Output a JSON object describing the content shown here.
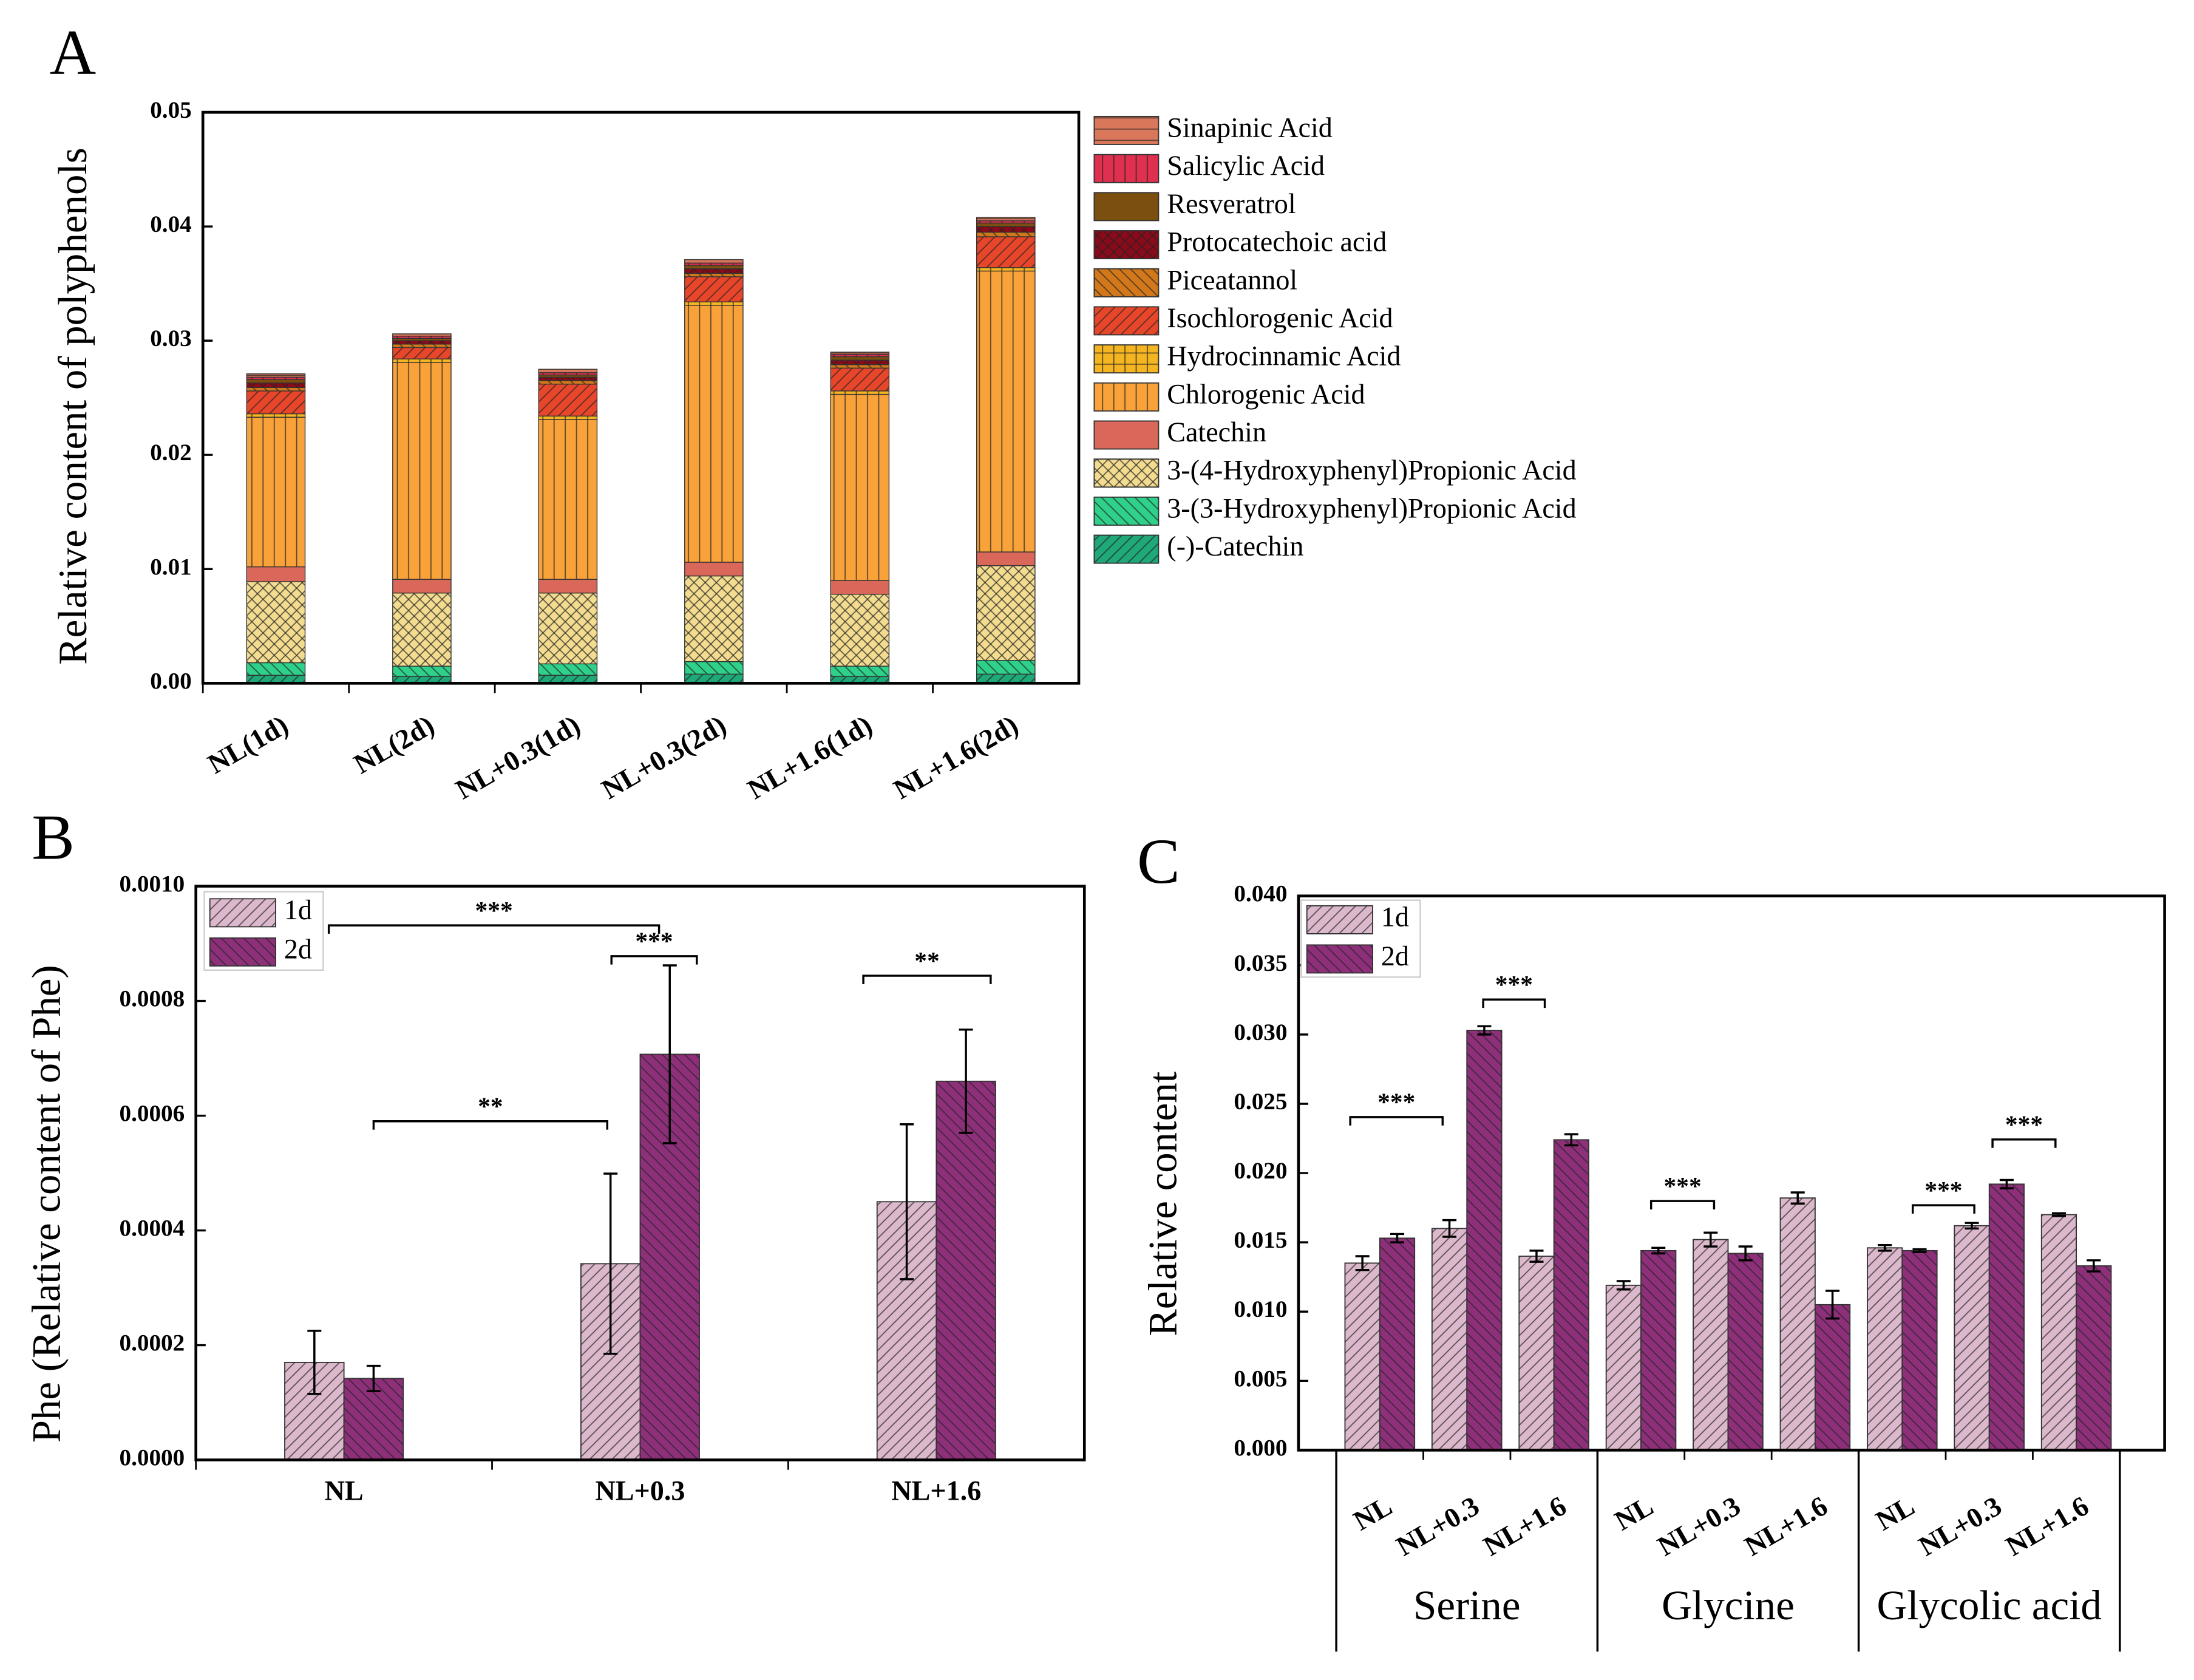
{
  "chart_data": [
    {
      "type": "bar",
      "stacked": true,
      "panel_label": "A",
      "ylabel": "Relative content of polyphenols",
      "categories": [
        "NL(1d)",
        "NL(2d)",
        "NL+0.3(1d)",
        "NL+0.3(2d)",
        "NL+1.6(1d)",
        "NL+1.6(2d)"
      ],
      "ylim": [
        0,
        0.05
      ],
      "yticks": [
        {
          "value": 0,
          "label": "0.00"
        },
        {
          "value": 0.01,
          "label": "0.01"
        },
        {
          "value": 0.02,
          "label": "0.02"
        },
        {
          "value": 0.03,
          "label": "0.03"
        },
        {
          "value": 0.04,
          "label": "0.04"
        },
        {
          "value": 0.05,
          "label": "0.05"
        }
      ],
      "legend": "outside right",
      "series": [
        {
          "name": "(-)-Catechin",
          "color": "#1fa878",
          "hatch": "diagonal",
          "values": [
            0.0007,
            0.0006,
            0.0007,
            0.0008,
            0.0006,
            0.0008
          ]
        },
        {
          "name": "3-(3-Hydroxyphenyl)Propionic Acid",
          "color": "#2ed08a",
          "hatch": "backdiagonal",
          "values": [
            0.0011,
            0.0009,
            0.001,
            0.0011,
            0.0009,
            0.0012
          ]
        },
        {
          "name": "3-(4-Hydroxyphenyl)Propionic Acid",
          "color": "#f3dc8f",
          "hatch": "cross",
          "values": [
            0.0071,
            0.0064,
            0.0062,
            0.0075,
            0.0063,
            0.0083
          ]
        },
        {
          "name": "Catechin",
          "color": "#d9685a",
          "hatch": "none",
          "values": [
            0.0013,
            0.0012,
            0.0012,
            0.0012,
            0.0012,
            0.0012
          ]
        },
        {
          "name": "Chlorogenic Acid",
          "color": "#f9a23a",
          "hatch": "vertical",
          "values": [
            0.0131,
            0.019,
            0.014,
            0.0225,
            0.0163,
            0.0246
          ]
        },
        {
          "name": "Hydrocinnamic Acid",
          "color": "#f5b520",
          "hatch": "grid",
          "values": [
            0.0003,
            0.0003,
            0.0003,
            0.0003,
            0.0003,
            0.0003
          ]
        },
        {
          "name": "Isochlorogenic Acid",
          "color": "#e8462a",
          "hatch": "diagonal",
          "values": [
            0.002,
            0.001,
            0.0028,
            0.0022,
            0.002,
            0.0027
          ]
        },
        {
          "name": "Piceatannol",
          "color": "#d2781b",
          "hatch": "backdiagonal",
          "values": [
            0.0003,
            0.0003,
            0.0003,
            0.0003,
            0.0003,
            0.0004
          ]
        },
        {
          "name": "Protocatechoic acid",
          "color": "#8b0a1a",
          "hatch": "cross",
          "values": [
            0.0004,
            0.0003,
            0.0003,
            0.0004,
            0.0004,
            0.0005
          ]
        },
        {
          "name": "Resveratrol",
          "color": "#7a4f10",
          "hatch": "none",
          "values": [
            0.0003,
            0.0002,
            0.0002,
            0.0003,
            0.0003,
            0.0003
          ]
        },
        {
          "name": "Salicylic Acid",
          "color": "#e0304f",
          "hatch": "vertical",
          "values": [
            0.0002,
            0.0002,
            0.0002,
            0.0002,
            0.0002,
            0.0002
          ]
        },
        {
          "name": "Sinapinic Acid",
          "color": "#d9775a",
          "hatch": "horizontal",
          "values": [
            0.0003,
            0.0002,
            0.0003,
            0.0003,
            0.0002,
            0.0003
          ]
        }
      ]
    },
    {
      "type": "bar",
      "stacked": false,
      "panel_label": "B",
      "ylabel": "Phe (Relative content of Phe)",
      "categories": [
        "NL",
        "NL+0.3",
        "NL+1.6"
      ],
      "ylim": [
        0,
        0.001
      ],
      "yticks": [
        {
          "value": 0,
          "label": "0.0000"
        },
        {
          "value": 0.0002,
          "label": "0.0002"
        },
        {
          "value": 0.0004,
          "label": "0.0004"
        },
        {
          "value": 0.0006,
          "label": "0.0006"
        },
        {
          "value": 0.0008,
          "label": "0.0008"
        },
        {
          "value": 0.001,
          "label": "0.0010"
        }
      ],
      "legend": "upper left",
      "series": [
        {
          "name": "1d",
          "color": "#dcb8cc",
          "hatch": "diagonal",
          "values": [
            0.00017,
            0.000342,
            0.00045
          ],
          "errors": [
            5.5e-05,
            0.000157,
            0.000135
          ]
        },
        {
          "name": "2d",
          "color": "#8e2f7a",
          "hatch": "backdiagonal",
          "values": [
            0.000142,
            0.000707,
            0.00066
          ],
          "errors": [
            2.2e-05,
            0.000155,
            9e-05
          ]
        }
      ],
      "annotations": [
        "***",
        "***",
        "**",
        "**"
      ]
    },
    {
      "type": "bar",
      "stacked": false,
      "panel_label": "C",
      "ylabel": "Relative content",
      "categories": [
        "NL",
        "NL+0.3",
        "NL+1.6",
        "NL",
        "NL+0.3",
        "NL+1.6",
        "NL",
        "NL+0.3",
        "NL+1.6"
      ],
      "groups": [
        "Serine",
        "Glycine",
        "Glycolic acid"
      ],
      "ylim": [
        0,
        0.04
      ],
      "yticks": [
        {
          "value": 0,
          "label": "0.000"
        },
        {
          "value": 0.005,
          "label": "0.005"
        },
        {
          "value": 0.01,
          "label": "0.010"
        },
        {
          "value": 0.015,
          "label": "0.015"
        },
        {
          "value": 0.02,
          "label": "0.020"
        },
        {
          "value": 0.025,
          "label": "0.025"
        },
        {
          "value": 0.03,
          "label": "0.030"
        },
        {
          "value": 0.035,
          "label": "0.035"
        },
        {
          "value": 0.04,
          "label": "0.040"
        }
      ],
      "legend": "upper left",
      "series": [
        {
          "name": "1d",
          "color": "#dcb8cc",
          "hatch": "diagonal",
          "values": [
            0.0135,
            0.016,
            0.014,
            0.0119,
            0.0152,
            0.0182,
            0.0146,
            0.0162,
            0.017
          ],
          "errors": [
            0.0005,
            0.0006,
            0.0004,
            0.0003,
            0.0005,
            0.0004,
            0.0002,
            0.0002,
            0.0001
          ]
        },
        {
          "name": "2d",
          "color": "#8e2f7a",
          "hatch": "backdiagonal",
          "values": [
            0.0153,
            0.0303,
            0.0224,
            0.0144,
            0.0142,
            0.0105,
            0.0144,
            0.0192,
            0.0133
          ],
          "errors": [
            0.0003,
            0.0003,
            0.0004,
            0.0002,
            0.0005,
            0.001,
            0.0001,
            0.0003,
            0.0004
          ]
        }
      ],
      "annotations": [
        "***",
        "***",
        "***",
        "***",
        "***"
      ]
    }
  ]
}
